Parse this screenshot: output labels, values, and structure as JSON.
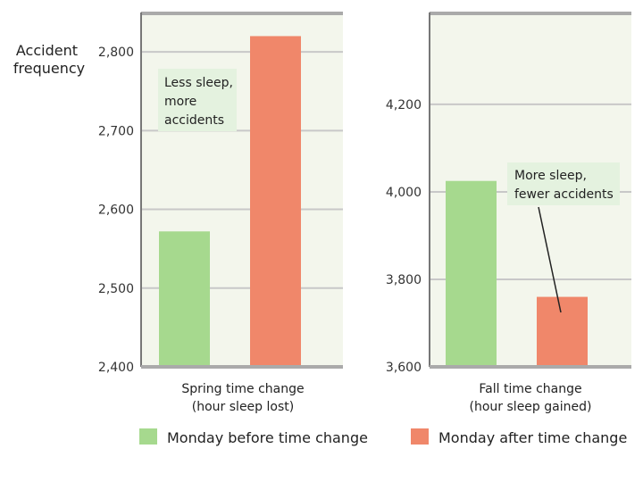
{
  "y_axis_label": [
    "Accident",
    "frequency"
  ],
  "colors": {
    "before": "#a6d98e",
    "after": "#f0876a",
    "panel_bg": "#f3f6ec",
    "grid": "#c8c8c8",
    "axis": "#777777",
    "note_bg": "#e4f2df"
  },
  "legend": [
    {
      "label": "Monday before time change",
      "color": "#a6d98e"
    },
    {
      "label": "Monday after time change",
      "color": "#f0876a"
    }
  ],
  "chart_data": [
    {
      "type": "bar",
      "categories": [
        "Monday before time change",
        "Monday after time change"
      ],
      "values": [
        2572,
        2820
      ],
      "ylim": [
        2400,
        2850
      ],
      "yticks": [
        "2,400",
        "2,500",
        "2,600",
        "2,700",
        "2,800"
      ],
      "ytick_values": [
        2400,
        2500,
        2600,
        2700,
        2800
      ],
      "caption": [
        "Spring time change",
        "(hour sleep lost)"
      ],
      "annotation": [
        "Less sleep,",
        "more",
        "accidents"
      ]
    },
    {
      "type": "bar",
      "categories": [
        "Monday before time change",
        "Monday after time change"
      ],
      "values": [
        4025,
        3760
      ],
      "ylim": [
        3600,
        4410
      ],
      "yticks": [
        "3,600",
        "3,800",
        "4,000",
        "4,200"
      ],
      "ytick_values": [
        3600,
        3800,
        4000,
        4200
      ],
      "caption": [
        "Fall time change",
        "(hour sleep gained)"
      ],
      "annotation": [
        "More sleep,",
        "fewer accidents"
      ]
    }
  ]
}
